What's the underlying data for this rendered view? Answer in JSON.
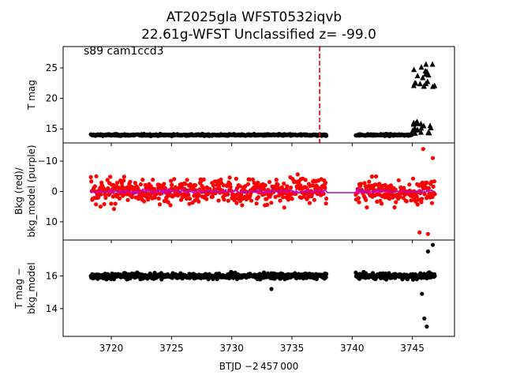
{
  "figure": {
    "title_line1": "AT2025gla  WFST0532iqvb",
    "title_line2": "22.61g-WFST Unclassified z= -99.0",
    "xlabel": "BTJD −2 457 000"
  },
  "chart_data": [
    {
      "type": "scatter",
      "panel": "top",
      "ylabel": "T mag",
      "annotation": "s89 cam1ccd3",
      "y_inverted": true,
      "xlim": [
        3716.0,
        3748.5
      ],
      "ylim": [
        28.5,
        12.7
      ],
      "yticks": [
        15,
        20,
        25
      ],
      "xticks": [
        3720,
        3725,
        3730,
        3735,
        3740,
        3745
      ],
      "vline": {
        "x": 3737.3,
        "color": "#e00000",
        "style": "dashed"
      },
      "series": [
        {
          "marker": "circle",
          "color": "#000000",
          "segments": [
            {
              "x_start": 3718.3,
              "x_end": 3737.9,
              "y_center": 14.0,
              "scatter": 0.12
            },
            {
              "x_start": 3740.3,
              "x_end": 3745.0,
              "y_center": 14.0,
              "scatter": 0.12
            }
          ]
        },
        {
          "marker": "triangle",
          "color": "#000000",
          "note": "upper limits near 3745-3747",
          "x_range": [
            3745.0,
            3746.9
          ],
          "y_range": [
            13.2,
            26.0
          ]
        }
      ]
    },
    {
      "type": "line",
      "panel": "middle",
      "ylabel_line1": "Bkg (red)/",
      "ylabel_line2": "bkg_model (purple)",
      "xlim": [
        3716.0,
        3748.5
      ],
      "ylim": [
        -16.0,
        16.0
      ],
      "yticks": [
        10,
        0,
        -10
      ],
      "series": [
        {
          "role": "bkg",
          "color": "#ff0000",
          "marker": "circle",
          "segments": [
            {
              "x_start": 3718.3,
              "x_end": 3737.9,
              "y_center": 0.0,
              "scatter": 3.5
            },
            {
              "x_start": 3740.3,
              "x_end": 3746.9,
              "y_center": 0.0,
              "scatter": 3.5
            }
          ]
        },
        {
          "role": "bkg_model",
          "color": "#c000c0",
          "marker": "line",
          "segments": [
            {
              "x_start": 3718.3,
              "x_end": 3746.9,
              "y_center": 0.0
            }
          ]
        }
      ]
    },
    {
      "type": "scatter",
      "panel": "bottom",
      "ylabel_line1": "T mag −",
      "ylabel_line2": "bkg_model",
      "y_inverted": true,
      "xlim": [
        3716.0,
        3748.5
      ],
      "ylim": [
        18.2,
        12.3
      ],
      "yticks": [
        14,
        16
      ],
      "series": [
        {
          "marker": "circle",
          "color": "#000000",
          "segments": [
            {
              "x_start": 3718.3,
              "x_end": 3737.9,
              "y_center": 16.0,
              "scatter": 0.15
            },
            {
              "x_start": 3740.3,
              "x_end": 3746.9,
              "y_center": 16.0,
              "scatter": 0.15
            }
          ]
        }
      ]
    }
  ]
}
